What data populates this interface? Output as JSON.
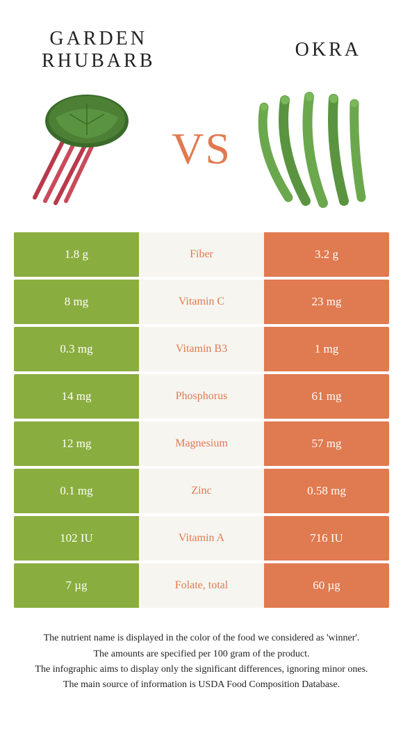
{
  "colors": {
    "green": "#8aad3f",
    "orange": "#e07a50",
    "mid_bg": "#f6f5f0",
    "text_dark": "#222222"
  },
  "header": {
    "left_title": "Garden\nrhubarb",
    "right_title": "Okra",
    "vs_text": "VS",
    "vs_color": "#e07a50"
  },
  "nutrients": [
    {
      "name": "Fiber",
      "left": "1.8 g",
      "right": "3.2 g",
      "winner": "right"
    },
    {
      "name": "Vitamin C",
      "left": "8 mg",
      "right": "23 mg",
      "winner": "right"
    },
    {
      "name": "Vitamin B3",
      "left": "0.3 mg",
      "right": "1 mg",
      "winner": "right"
    },
    {
      "name": "Phosphorus",
      "left": "14 mg",
      "right": "61 mg",
      "winner": "right"
    },
    {
      "name": "Magnesium",
      "left": "12 mg",
      "right": "57 mg",
      "winner": "right"
    },
    {
      "name": "Zinc",
      "left": "0.1 mg",
      "right": "0.58 mg",
      "winner": "right"
    },
    {
      "name": "Vitamin A",
      "left": "102 IU",
      "right": "716 IU",
      "winner": "right"
    },
    {
      "name": "Folate, total",
      "left": "7 µg",
      "right": "60 µg",
      "winner": "right"
    }
  ],
  "footer": {
    "line1": "The nutrient name is displayed in the color of the food we considered as 'winner'.",
    "line2": "The amounts are specified per 100 gram of the product.",
    "line3": "The infographic aims to display only the significant differences, ignoring minor ones.",
    "line4": "The main source of information is USDA Food Composition Database."
  }
}
